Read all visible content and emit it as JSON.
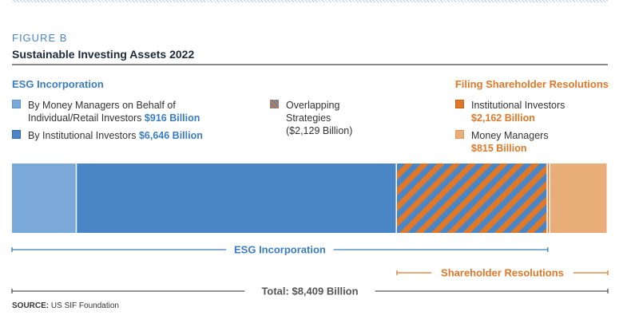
{
  "figure_label": "FIGURE B",
  "title": "Sustainable Investing Assets 2022",
  "legend": {
    "esg_heading": "ESG Incorporation",
    "filing_heading": "Filing Shareholder Resolutions",
    "money_managers": {
      "label_line1": "By Money Managers on Behalf of",
      "label_line2": "Individual/Retail Investors",
      "value": "$916 Billion"
    },
    "institutional": {
      "label": "By Institutional Investors",
      "value": "$6,646 Billion"
    },
    "overlapping": {
      "label_line1": "Overlapping",
      "label_line2": "Strategies",
      "value": "($2,129 Billion)"
    },
    "filing_institutional": {
      "label": "Institutional Investors",
      "value": "$2,162 Billion"
    },
    "filing_money_managers": {
      "label": "Money Managers",
      "value": "$815 Billion"
    }
  },
  "chart_data": {
    "type": "bar",
    "orientation": "horizontal-stacked",
    "unit": "Billion USD",
    "esg_money_managers": 916,
    "esg_institutional": 6646,
    "overlapping": 2129,
    "filing_institutional": 2162,
    "filing_money_managers": 815,
    "total": 8409,
    "brackets": {
      "esg": "ESG Incorporation",
      "shareholder": "Shareholder Resolutions",
      "total": "Total: $8,409 Billion"
    },
    "colors": {
      "esg_money_managers": "#7aa8d8",
      "esg_institutional": "#4a86c5",
      "filing_institutional": "#e0782a",
      "filing_money_managers": "#e8ad78",
      "total_line": "#555555"
    }
  },
  "source": {
    "label": "SOURCE:",
    "text": "US SIF Foundation"
  }
}
